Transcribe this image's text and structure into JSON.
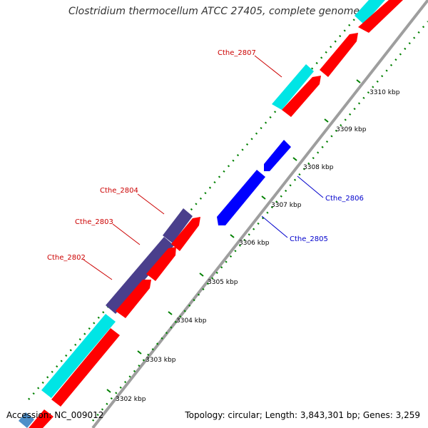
{
  "title": "Clostridium thermocellum ATCC 27405, complete genome",
  "accession": "Accession: NC_009012",
  "summary": "Topology: circular; Length: 3,843,301 bp; Genes: 3,259",
  "colors": {
    "forward_cds": "#ff0000",
    "forward_cds_alt": "#00e5e5",
    "forward_cds_dark": "#4a3f8c",
    "reverse_cds": "#0000ff",
    "backbone": "#9e9e9e",
    "tick": "#008000",
    "forward_label": "#cc0000",
    "reverse_label": "#0000cc"
  },
  "ticks": [
    "3302 kbp",
    "3303 kbp",
    "3304 kbp",
    "3305 kbp",
    "3306 kbp",
    "3307 kbp",
    "3308 kbp",
    "3309 kbp",
    "3310 kbp"
  ],
  "gene_labels": [
    {
      "name": "Cthe_2802",
      "strand": "forward"
    },
    {
      "name": "Cthe_2803",
      "strand": "forward"
    },
    {
      "name": "Cthe_2804",
      "strand": "forward"
    },
    {
      "name": "Cthe_2807",
      "strand": "forward"
    },
    {
      "name": "Cthe_2805",
      "strand": "reverse"
    },
    {
      "name": "Cthe_2806",
      "strand": "reverse"
    }
  ]
}
